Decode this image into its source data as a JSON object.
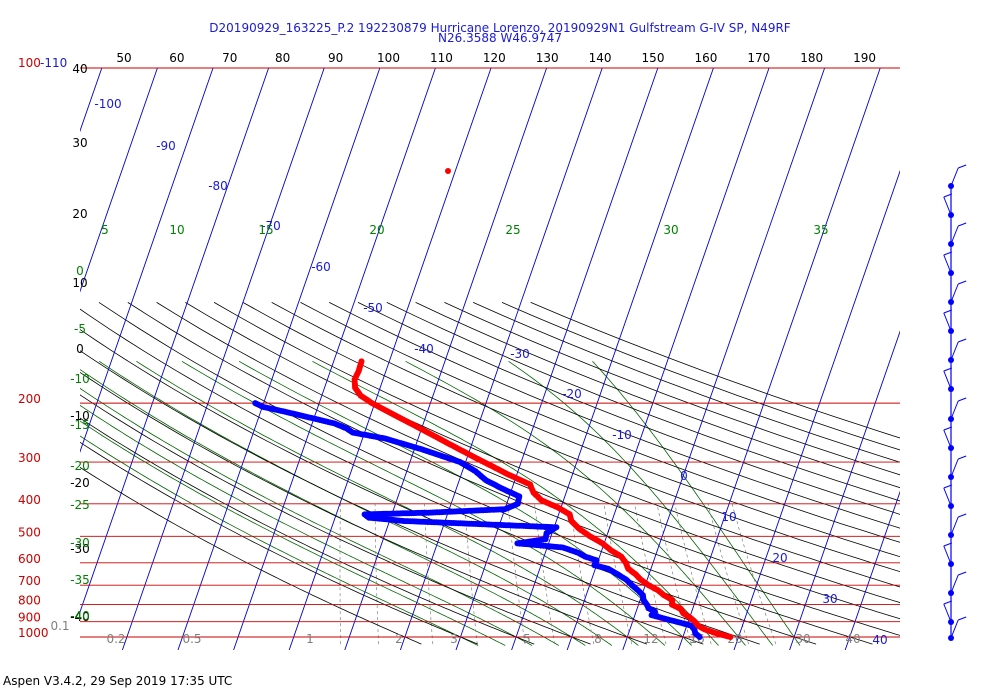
{
  "header": {
    "line1": "D20190929_163225_P.2 192230879 Hurricane Lorenzo, 20190929N1 Gulfstream G-IV SP, N49RF",
    "line2": "N26.3588 W46.9747"
  },
  "footer": {
    "text": "Aspen V3.4.2, 29 Sep 2019  17:35 UTC"
  },
  "colors": {
    "temperature": "#ff0000",
    "dewpoint": "#0000ff",
    "isobar": "#cc0000",
    "isotherm": "#0000cc",
    "dry_adiabat": "#000000",
    "moist_adiabat": "#006400",
    "mixing_ratio": "#808080",
    "theta_w": "#008000"
  },
  "chart_data": {
    "type": "skew-T log-P sounding",
    "top_temperature_ticks": [
      "50",
      "60",
      "70",
      "80",
      "90",
      "100",
      "110",
      "120",
      "130",
      "140",
      "150",
      "160",
      "170",
      "180",
      "190"
    ],
    "pressure_levels": [
      {
        "p": 1000,
        "label": "1000"
      },
      {
        "p": 900,
        "label": "900"
      },
      {
        "p": 800,
        "label": "800"
      },
      {
        "p": 700,
        "label": "700"
      },
      {
        "p": 600,
        "label": "600"
      },
      {
        "p": 500,
        "label": "500"
      },
      {
        "p": 400,
        "label": "400"
      },
      {
        "p": 300,
        "label": "300"
      },
      {
        "p": 200,
        "label": "200"
      },
      {
        "p": 110,
        "label": "100-110"
      }
    ],
    "isotherm_labels": [
      "-100",
      "-90",
      "-80",
      "-70",
      "-60",
      "-50",
      "-40",
      "-30",
      "-20",
      "-10",
      "0",
      "10",
      "20",
      "30",
      "40"
    ],
    "left_temperature_labels": [
      "40",
      "30",
      "20",
      "10",
      "0",
      "-10",
      "-20",
      "-30",
      "-40"
    ],
    "theta_w_labels": [
      "5",
      "10",
      "15",
      "20",
      "25",
      "30",
      "35"
    ],
    "left_theta_w_labels": [
      "0",
      "-5",
      "-10",
      "-15",
      "-20",
      "-25",
      "-30",
      "-35",
      "-40"
    ],
    "mixing_ratio_labels": [
      "0.1",
      "0.2",
      "0.5",
      "1",
      "2",
      "3",
      "5",
      "8",
      "12",
      "16",
      "20",
      "30",
      "40"
    ],
    "temperature_profile": [
      {
        "p": 1000,
        "t": 28.5
      },
      {
        "p": 990,
        "t": 27.4
      },
      {
        "p": 975,
        "t": 25.8
      },
      {
        "p": 950,
        "t": 23.5
      },
      {
        "p": 925,
        "t": 22.0
      },
      {
        "p": 900,
        "t": 21.2
      },
      {
        "p": 875,
        "t": 20.1
      },
      {
        "p": 850,
        "t": 18.6
      },
      {
        "p": 825,
        "t": 17.9
      },
      {
        "p": 800,
        "t": 16.0
      },
      {
        "p": 775,
        "t": 15.8
      },
      {
        "p": 750,
        "t": 14.0
      },
      {
        "p": 725,
        "t": 12.6
      },
      {
        "p": 700,
        "t": 10.6
      },
      {
        "p": 675,
        "t": 8.9
      },
      {
        "p": 650,
        "t": 7.6
      },
      {
        "p": 625,
        "t": 5.9
      },
      {
        "p": 600,
        "t": 5.1
      },
      {
        "p": 575,
        "t": 3.9
      },
      {
        "p": 550,
        "t": 1.6
      },
      {
        "p": 525,
        "t": -0.3
      },
      {
        "p": 500,
        "t": -3.0
      },
      {
        "p": 475,
        "t": -5.4
      },
      {
        "p": 450,
        "t": -7.3
      },
      {
        "p": 430,
        "t": -8.0
      },
      {
        "p": 410,
        "t": -10.6
      },
      {
        "p": 390,
        "t": -14.0
      },
      {
        "p": 370,
        "t": -15.9
      },
      {
        "p": 350,
        "t": -17.0
      },
      {
        "p": 325,
        "t": -21.9
      },
      {
        "p": 300,
        "t": -26.7
      },
      {
        "p": 275,
        "t": -31.9
      },
      {
        "p": 250,
        "t": -37.4
      },
      {
        "p": 225,
        "t": -43.6
      },
      {
        "p": 200,
        "t": -50.5
      },
      {
        "p": 190,
        "t": -53.0
      },
      {
        "p": 180,
        "t": -54.5
      },
      {
        "p": 170,
        "t": -55.1
      },
      {
        "p": 160,
        "t": -54.9
      },
      {
        "p": 150,
        "t": -55.0
      }
    ],
    "dewpoint_profile": [
      {
        "p": 1000,
        "t": 23.0
      },
      {
        "p": 975,
        "t": 22.0
      },
      {
        "p": 950,
        "t": 21.6
      },
      {
        "p": 925,
        "t": 20.8
      },
      {
        "p": 900,
        "t": 17.9
      },
      {
        "p": 880,
        "t": 15.4
      },
      {
        "p": 860,
        "t": 13.0
      },
      {
        "p": 840,
        "t": 13.4
      },
      {
        "p": 820,
        "t": 12.0
      },
      {
        "p": 800,
        "t": 11.5
      },
      {
        "p": 775,
        "t": 10.6
      },
      {
        "p": 750,
        "t": 10.2
      },
      {
        "p": 725,
        "t": 9.0
      },
      {
        "p": 700,
        "t": 7.6
      },
      {
        "p": 675,
        "t": 6.3
      },
      {
        "p": 650,
        "t": 4.4
      },
      {
        "p": 625,
        "t": 2.3
      },
      {
        "p": 610,
        "t": -0.4
      },
      {
        "p": 590,
        "t": -0.3
      },
      {
        "p": 575,
        "t": -2.6
      },
      {
        "p": 560,
        "t": -4.1
      },
      {
        "p": 540,
        "t": -7.2
      },
      {
        "p": 525,
        "t": -15.6
      },
      {
        "p": 510,
        "t": -10.8
      },
      {
        "p": 490,
        "t": -11.0
      },
      {
        "p": 470,
        "t": -9.6
      },
      {
        "p": 450,
        "t": -37.5
      },
      {
        "p": 440,
        "t": -43.9
      },
      {
        "p": 430,
        "t": -44.9
      },
      {
        "p": 425,
        "t": -33.5
      },
      {
        "p": 415,
        "t": -20.0
      },
      {
        "p": 400,
        "t": -18.0
      },
      {
        "p": 380,
        "t": -18.2
      },
      {
        "p": 360,
        "t": -21.8
      },
      {
        "p": 340,
        "t": -25.2
      },
      {
        "p": 320,
        "t": -27.6
      },
      {
        "p": 300,
        "t": -31.0
      },
      {
        "p": 275,
        "t": -38.6
      },
      {
        "p": 255,
        "t": -46.0
      },
      {
        "p": 245,
        "t": -52.1
      },
      {
        "p": 238,
        "t": -53.5
      },
      {
        "p": 230,
        "t": -56.0
      },
      {
        "p": 215,
        "t": -64.0
      },
      {
        "p": 205,
        "t": -70.0
      },
      {
        "p": 200,
        "t": -71.5
      }
    ]
  }
}
